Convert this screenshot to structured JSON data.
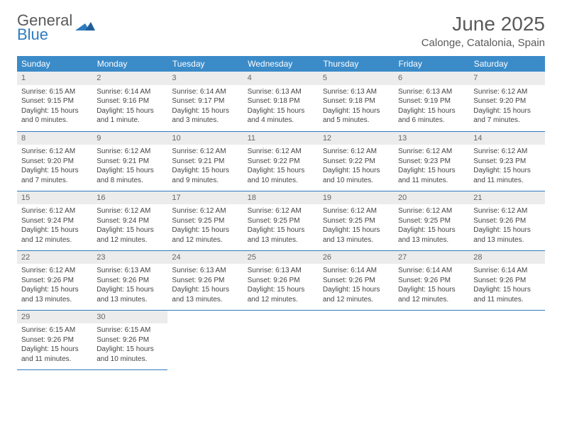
{
  "brand": {
    "word1": "General",
    "word2": "Blue"
  },
  "title": "June 2025",
  "location": "Calonge, Catalonia, Spain",
  "weekdays": [
    "Sunday",
    "Monday",
    "Tuesday",
    "Wednesday",
    "Thursday",
    "Friday",
    "Saturday"
  ],
  "colors": {
    "header_bg": "#3b8bc9",
    "accent": "#2f7bbf",
    "daynum_bg": "#ececec",
    "text": "#444"
  },
  "days": [
    {
      "n": 1,
      "sunrise": "6:15 AM",
      "sunset": "9:15 PM",
      "daylight": "15 hours and 0 minutes."
    },
    {
      "n": 2,
      "sunrise": "6:14 AM",
      "sunset": "9:16 PM",
      "daylight": "15 hours and 1 minute."
    },
    {
      "n": 3,
      "sunrise": "6:14 AM",
      "sunset": "9:17 PM",
      "daylight": "15 hours and 3 minutes."
    },
    {
      "n": 4,
      "sunrise": "6:13 AM",
      "sunset": "9:18 PM",
      "daylight": "15 hours and 4 minutes."
    },
    {
      "n": 5,
      "sunrise": "6:13 AM",
      "sunset": "9:18 PM",
      "daylight": "15 hours and 5 minutes."
    },
    {
      "n": 6,
      "sunrise": "6:13 AM",
      "sunset": "9:19 PM",
      "daylight": "15 hours and 6 minutes."
    },
    {
      "n": 7,
      "sunrise": "6:12 AM",
      "sunset": "9:20 PM",
      "daylight": "15 hours and 7 minutes."
    },
    {
      "n": 8,
      "sunrise": "6:12 AM",
      "sunset": "9:20 PM",
      "daylight": "15 hours and 7 minutes."
    },
    {
      "n": 9,
      "sunrise": "6:12 AM",
      "sunset": "9:21 PM",
      "daylight": "15 hours and 8 minutes."
    },
    {
      "n": 10,
      "sunrise": "6:12 AM",
      "sunset": "9:21 PM",
      "daylight": "15 hours and 9 minutes."
    },
    {
      "n": 11,
      "sunrise": "6:12 AM",
      "sunset": "9:22 PM",
      "daylight": "15 hours and 10 minutes."
    },
    {
      "n": 12,
      "sunrise": "6:12 AM",
      "sunset": "9:22 PM",
      "daylight": "15 hours and 10 minutes."
    },
    {
      "n": 13,
      "sunrise": "6:12 AM",
      "sunset": "9:23 PM",
      "daylight": "15 hours and 11 minutes."
    },
    {
      "n": 14,
      "sunrise": "6:12 AM",
      "sunset": "9:23 PM",
      "daylight": "15 hours and 11 minutes."
    },
    {
      "n": 15,
      "sunrise": "6:12 AM",
      "sunset": "9:24 PM",
      "daylight": "15 hours and 12 minutes."
    },
    {
      "n": 16,
      "sunrise": "6:12 AM",
      "sunset": "9:24 PM",
      "daylight": "15 hours and 12 minutes."
    },
    {
      "n": 17,
      "sunrise": "6:12 AM",
      "sunset": "9:25 PM",
      "daylight": "15 hours and 12 minutes."
    },
    {
      "n": 18,
      "sunrise": "6:12 AM",
      "sunset": "9:25 PM",
      "daylight": "15 hours and 13 minutes."
    },
    {
      "n": 19,
      "sunrise": "6:12 AM",
      "sunset": "9:25 PM",
      "daylight": "15 hours and 13 minutes."
    },
    {
      "n": 20,
      "sunrise": "6:12 AM",
      "sunset": "9:25 PM",
      "daylight": "15 hours and 13 minutes."
    },
    {
      "n": 21,
      "sunrise": "6:12 AM",
      "sunset": "9:26 PM",
      "daylight": "15 hours and 13 minutes."
    },
    {
      "n": 22,
      "sunrise": "6:12 AM",
      "sunset": "9:26 PM",
      "daylight": "15 hours and 13 minutes."
    },
    {
      "n": 23,
      "sunrise": "6:13 AM",
      "sunset": "9:26 PM",
      "daylight": "15 hours and 13 minutes."
    },
    {
      "n": 24,
      "sunrise": "6:13 AM",
      "sunset": "9:26 PM",
      "daylight": "15 hours and 13 minutes."
    },
    {
      "n": 25,
      "sunrise": "6:13 AM",
      "sunset": "9:26 PM",
      "daylight": "15 hours and 12 minutes."
    },
    {
      "n": 26,
      "sunrise": "6:14 AM",
      "sunset": "9:26 PM",
      "daylight": "15 hours and 12 minutes."
    },
    {
      "n": 27,
      "sunrise": "6:14 AM",
      "sunset": "9:26 PM",
      "daylight": "15 hours and 12 minutes."
    },
    {
      "n": 28,
      "sunrise": "6:14 AM",
      "sunset": "9:26 PM",
      "daylight": "15 hours and 11 minutes."
    },
    {
      "n": 29,
      "sunrise": "6:15 AM",
      "sunset": "9:26 PM",
      "daylight": "15 hours and 11 minutes."
    },
    {
      "n": 30,
      "sunrise": "6:15 AM",
      "sunset": "9:26 PM",
      "daylight": "15 hours and 10 minutes."
    }
  ],
  "labels": {
    "sunrise": "Sunrise: ",
    "sunset": "Sunset: ",
    "daylight": "Daylight: "
  }
}
